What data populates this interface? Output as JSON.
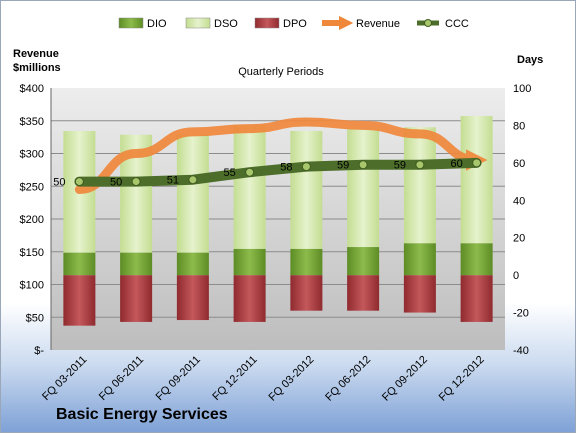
{
  "company": "Basic Energy Services",
  "chart_data": {
    "type": "bar",
    "title": "Quarterly Periods",
    "left_axis_label": [
      "Revenue",
      "$millions"
    ],
    "right_axis_label": "Days",
    "left_ticks": [
      "$400",
      "$350",
      "$300",
      "$250",
      "$200",
      "$150",
      "$100",
      "$50",
      "$-"
    ],
    "right_ticks": [
      "100",
      "80",
      "60",
      "40",
      "20",
      "0",
      "-20",
      "-40"
    ],
    "left_range": [
      0,
      400
    ],
    "right_range": [
      -40,
      100
    ],
    "categories": [
      "FQ 03-2011",
      "FQ 06-2011",
      "FQ 09-2011",
      "FQ 12-2011",
      "FQ 03-2012",
      "FQ 06-2012",
      "FQ 09-2012",
      "FQ 12-2012"
    ],
    "legend": [
      "DIO",
      "DSO",
      "DPO",
      "Revenue",
      "CCC"
    ],
    "colors": {
      "DIO": "#77a33a",
      "DSO": "#d2e7a9",
      "DPO": "#b03a3e",
      "Revenue": "#f0883c",
      "CCC": "#4d6e2a"
    },
    "series": [
      {
        "name": "DIO",
        "values": [
          12,
          12,
          12,
          14,
          14,
          15,
          17,
          17
        ]
      },
      {
        "name": "DSO",
        "values": [
          65,
          63,
          63,
          66,
          63,
          63,
          62,
          68
        ]
      },
      {
        "name": "DPO",
        "values": [
          -27,
          -25,
          -24,
          -25,
          -19,
          -19,
          -20,
          -25
        ]
      },
      {
        "name": "Revenue",
        "values": [
          245,
          300,
          333,
          338,
          348,
          343,
          330,
          290
        ]
      },
      {
        "name": "CCC",
        "values": [
          50,
          50,
          51,
          55,
          58,
          59,
          59,
          60
        ]
      }
    ],
    "ccc_labels": [
      "50",
      "50",
      "51",
      "55",
      "58",
      "59",
      "59",
      "60"
    ]
  }
}
